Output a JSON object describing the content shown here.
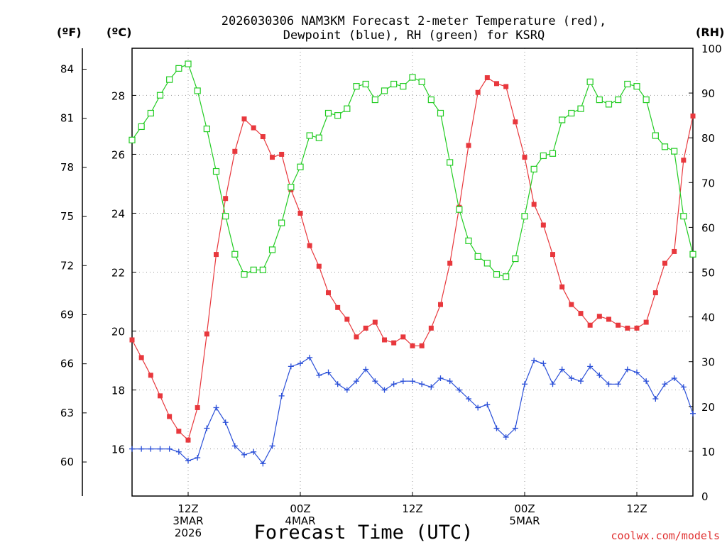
{
  "chart_data": {
    "type": "line",
    "title": {
      "line1": "2026030306 NAM3KM Forecast 2-meter Temperature (red),",
      "line2": "Dewpoint (blue), RH (green) for KSRQ"
    },
    "unit_labels": {
      "fahrenheit": "(ºF)",
      "celsius": "(ºC)",
      "rh": "(RH)"
    },
    "xlabel": "Forecast Time (UTC)",
    "credit": "coolwx.com/models",
    "x_hours": [
      6,
      7,
      8,
      9,
      10,
      11,
      12,
      13,
      14,
      15,
      16,
      17,
      18,
      19,
      20,
      21,
      22,
      23,
      24,
      25,
      26,
      27,
      28,
      29,
      30,
      31,
      32,
      33,
      34,
      35,
      36,
      37,
      38,
      39,
      40,
      41,
      42,
      43,
      44,
      45,
      46,
      47,
      48,
      49,
      50,
      51,
      52,
      53,
      54,
      55,
      56,
      57,
      58,
      59,
      60,
      61,
      62,
      63,
      64,
      65,
      66
    ],
    "x_range_hours": [
      6,
      66
    ],
    "x_ticks": [
      {
        "hour": 12,
        "lines": [
          "12Z",
          "3MAR",
          "2026"
        ]
      },
      {
        "hour": 24,
        "lines": [
          "00Z",
          "4MAR"
        ]
      },
      {
        "hour": 36,
        "lines": [
          "12Z"
        ]
      },
      {
        "hour": 48,
        "lines": [
          "00Z",
          "5MAR"
        ]
      },
      {
        "hour": 60,
        "lines": [
          "12Z"
        ]
      }
    ],
    "y_celsius": {
      "range": [
        14.4,
        29.6
      ],
      "ticks": [
        16,
        18,
        20,
        22,
        24,
        26,
        28
      ]
    },
    "y_fahrenheit": {
      "ticks": [
        60,
        63,
        66,
        69,
        72,
        75,
        78,
        81,
        84
      ]
    },
    "y_rh": {
      "range": [
        0,
        100
      ],
      "ticks": [
        0,
        10,
        20,
        30,
        40,
        50,
        60,
        70,
        80,
        90,
        100
      ]
    },
    "series": [
      {
        "name": "Temperature",
        "axis": "celsius",
        "color": "#e8383d",
        "marker": "filled-square",
        "values": [
          19.7,
          19.1,
          18.5,
          17.8,
          17.1,
          16.6,
          16.3,
          17.4,
          19.9,
          22.6,
          24.5,
          26.1,
          27.2,
          26.9,
          26.6,
          25.9,
          26.0,
          24.8,
          24.0,
          22.9,
          22.2,
          21.3,
          20.8,
          20.4,
          19.8,
          20.1,
          20.3,
          19.7,
          19.6,
          19.8,
          19.5,
          19.5,
          20.1,
          20.9,
          22.3,
          24.2,
          26.3,
          28.1,
          28.6,
          28.4,
          28.3,
          27.1,
          25.9,
          24.3,
          23.6,
          22.6,
          21.5,
          20.9,
          20.6,
          20.2,
          20.5,
          20.4,
          20.2,
          20.1,
          20.1,
          20.3,
          21.3,
          22.3,
          22.7,
          25.8,
          27.3
        ]
      },
      {
        "name": "Dewpoint",
        "axis": "celsius",
        "color": "#2a4fd8",
        "marker": "plus",
        "values": [
          16.0,
          16.0,
          16.0,
          16.0,
          16.0,
          15.9,
          15.6,
          15.7,
          16.7,
          17.4,
          16.9,
          16.1,
          15.8,
          15.9,
          15.5,
          16.1,
          17.8,
          18.8,
          18.9,
          19.1,
          18.5,
          18.6,
          18.2,
          18.0,
          18.3,
          18.7,
          18.3,
          18.0,
          18.2,
          18.3,
          18.3,
          18.2,
          18.1,
          18.4,
          18.3,
          18.0,
          17.7,
          17.4,
          17.5,
          16.7,
          16.4,
          16.7,
          18.2,
          19.0,
          18.9,
          18.2,
          18.7,
          18.4,
          18.3,
          18.8,
          18.5,
          18.2,
          18.2,
          18.7,
          18.6,
          18.3,
          17.7,
          18.2,
          18.4,
          18.1,
          17.2
        ]
      },
      {
        "name": "RH",
        "axis": "rh",
        "color": "#22cc22",
        "marker": "open-square",
        "values": [
          79.5,
          82.5,
          85.5,
          89.5,
          93,
          95.5,
          96.5,
          90.5,
          82,
          72.5,
          62.5,
          54,
          49.5,
          50.5,
          50.5,
          55,
          61,
          69,
          73.5,
          80.5,
          80,
          85.5,
          85,
          86.5,
          91.5,
          92,
          88.5,
          90.5,
          92,
          91.5,
          93.5,
          92.5,
          88.5,
          85.5,
          74.5,
          64,
          57,
          53.5,
          52,
          49.5,
          49,
          53,
          62.5,
          73,
          76,
          76.5,
          84,
          85.5,
          86.5,
          92.5,
          88.5,
          87.5,
          88.5,
          92,
          91.5,
          88.5,
          80.5,
          78,
          77,
          62.5,
          54
        ]
      }
    ]
  }
}
